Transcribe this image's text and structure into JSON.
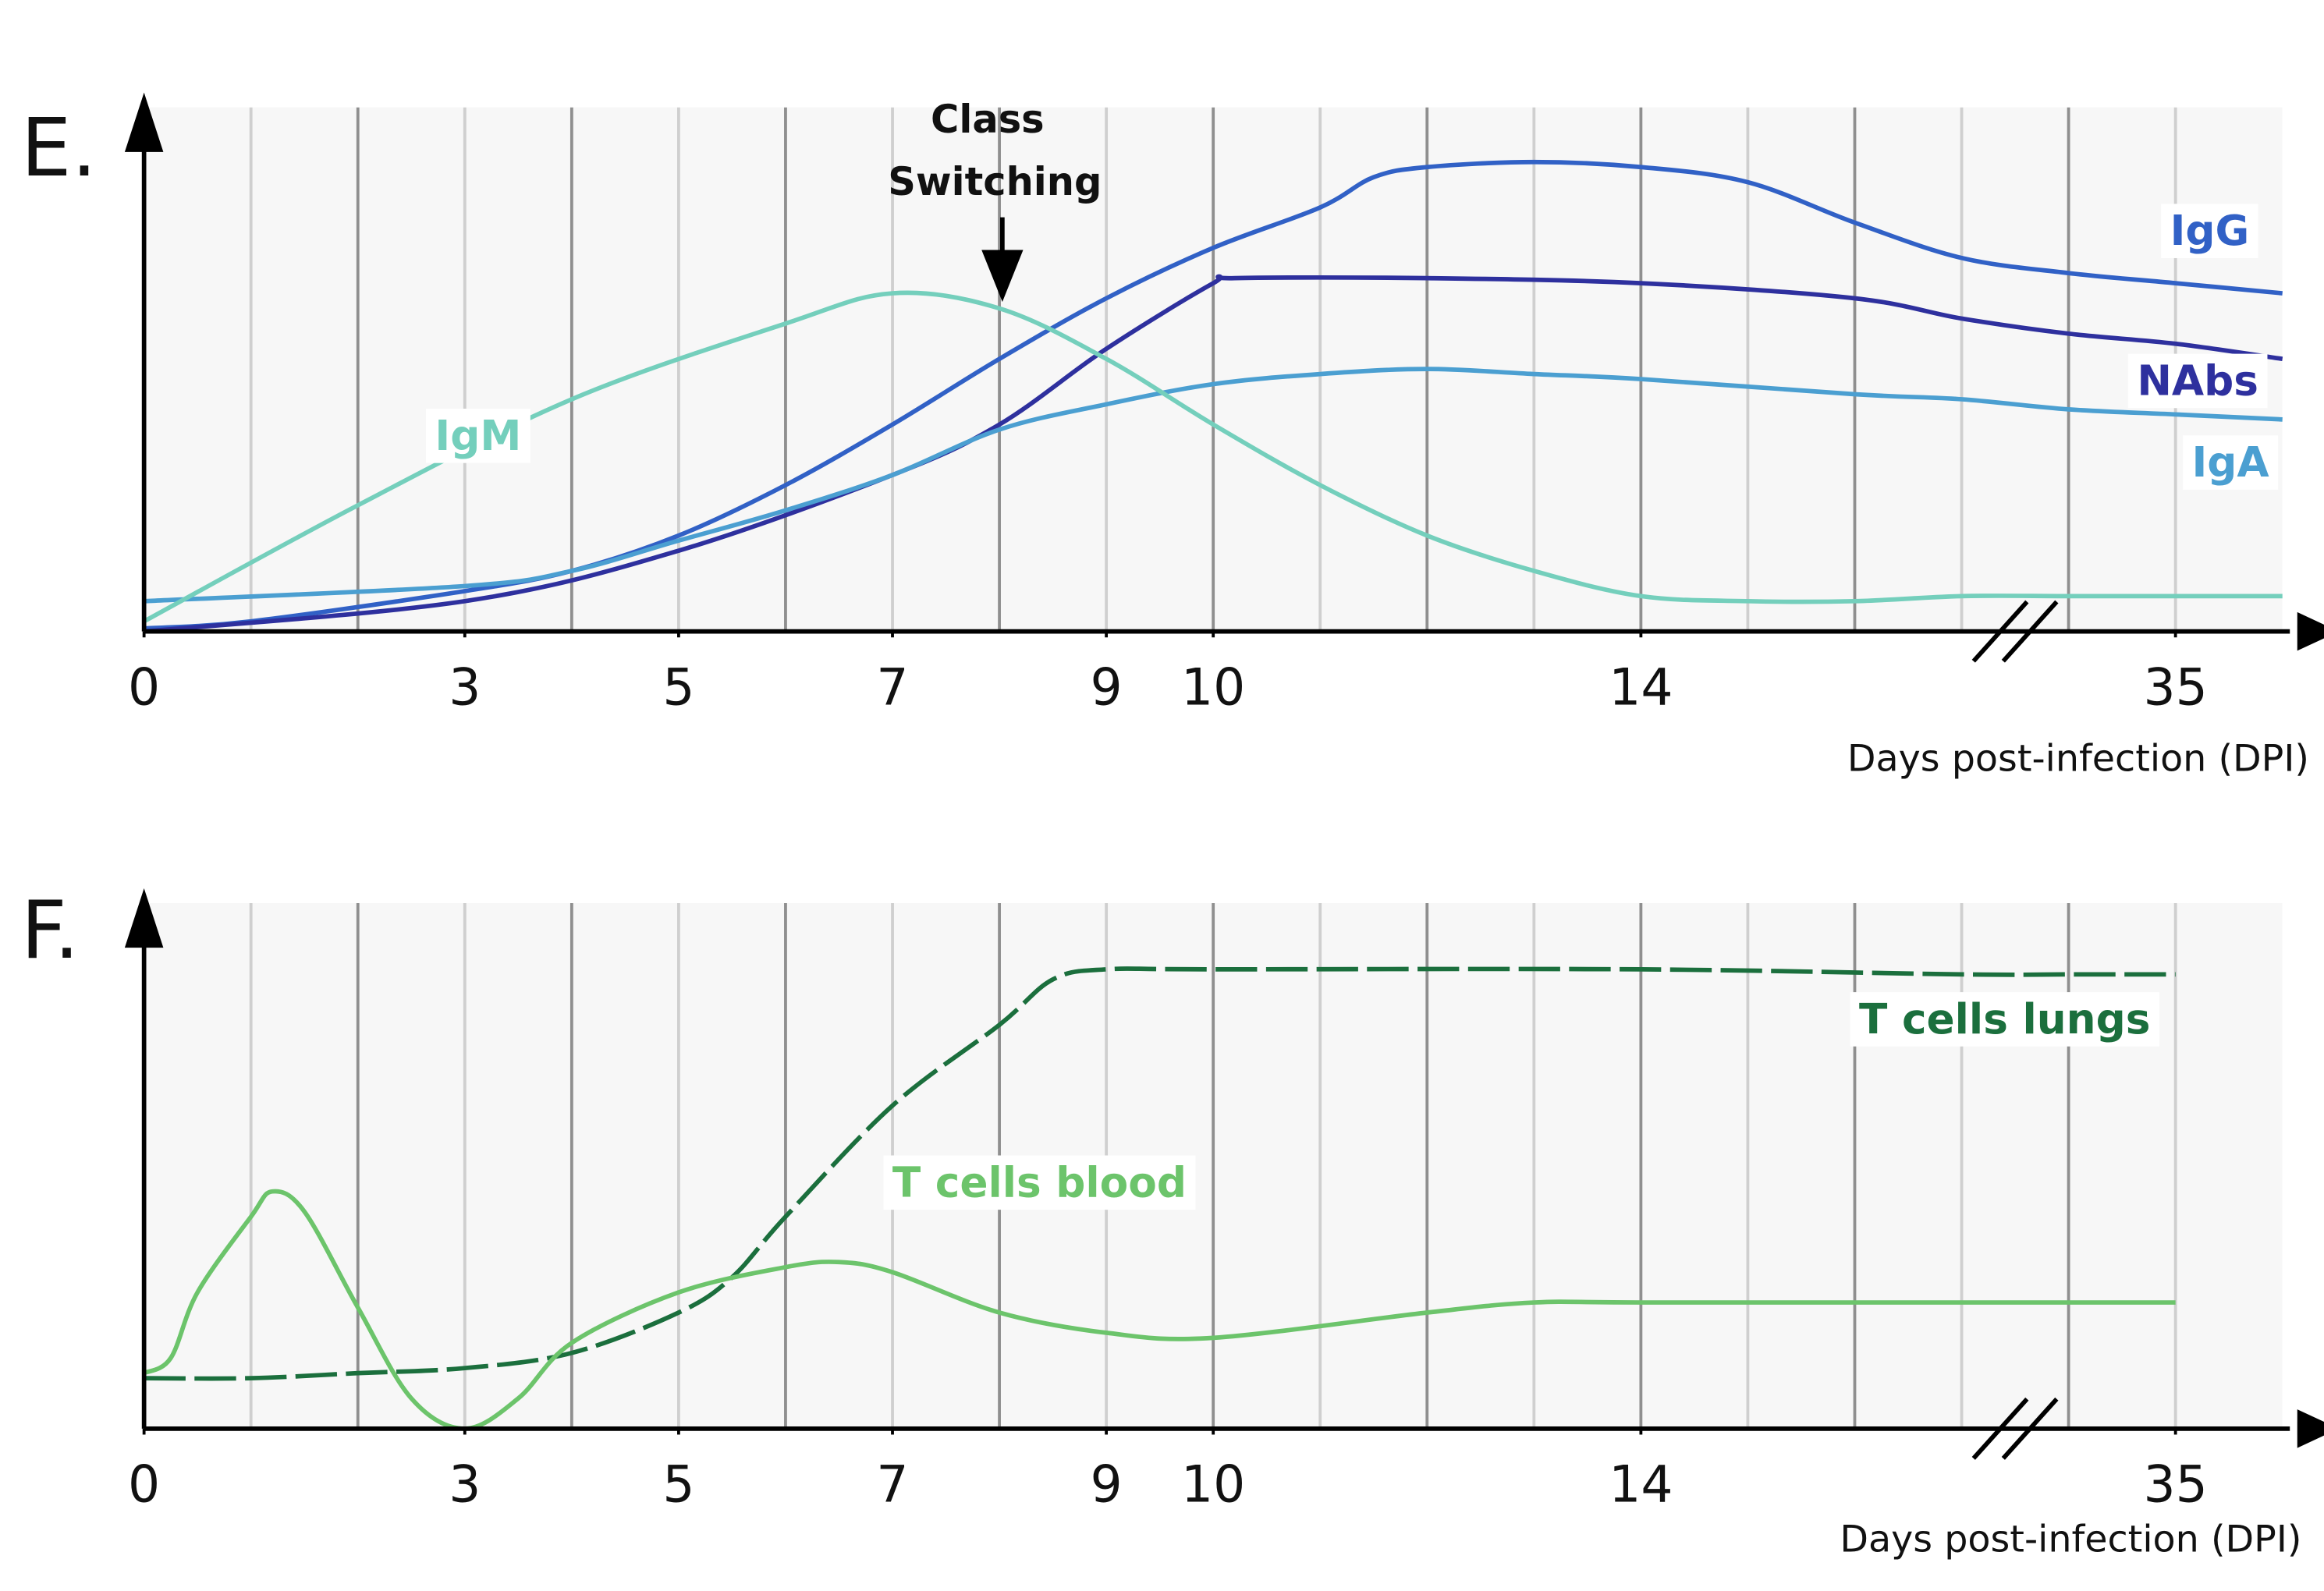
{
  "chart_data": [
    {
      "type": "line",
      "label": "E.",
      "xlabel": "Days post-infection (DPI)",
      "annotation": [
        "Class",
        "Switching"
      ],
      "xlim": [
        0,
        36
      ],
      "xbreak": [
        17,
        34
      ],
      "xticks": [
        0,
        3,
        5,
        7,
        9,
        10,
        14,
        35
      ],
      "xgrid": [
        1,
        2,
        3,
        4,
        5,
        6,
        7,
        8,
        9,
        10,
        11,
        12,
        13,
        14,
        15,
        16,
        17,
        34,
        35
      ],
      "ylim": [
        0,
        100
      ],
      "series": [
        {
          "name": "IgG",
          "color": "#3161c6",
          "dash": false,
          "x": [
            0,
            1,
            3,
            4,
            5,
            6,
            7,
            8,
            9,
            10,
            11,
            11.5,
            12,
            13,
            14,
            15,
            16,
            17,
            34,
            35,
            36
          ],
          "values": [
            0.6,
            2,
            8,
            12,
            19,
            29,
            41,
            54,
            66,
            76,
            84,
            90,
            92,
            93,
            92,
            89,
            81,
            74,
            71,
            69,
            67
          ]
        },
        {
          "name": "NAbs",
          "color": "#2e309e",
          "dash": false,
          "x": [
            0,
            3,
            5,
            7,
            8,
            9,
            10,
            10.2,
            12,
            14,
            16,
            17,
            34,
            35,
            36
          ],
          "values": [
            0,
            6,
            16,
            31,
            41,
            56,
            69,
            70,
            70,
            69,
            66,
            62,
            59,
            57,
            54
          ]
        },
        {
          "name": "IgA",
          "color": "#4b9fd1",
          "dash": false,
          "x": [
            0,
            3,
            4,
            5,
            6,
            7,
            8,
            9,
            10,
            11,
            12,
            13,
            14,
            16,
            17,
            34,
            35,
            36
          ],
          "values": [
            6,
            9,
            12,
            18,
            24,
            31,
            40,
            45,
            49,
            51,
            52,
            51,
            50,
            47,
            46,
            44,
            43,
            42
          ]
        },
        {
          "name": "IgM",
          "color": "#74cfbc",
          "dash": false,
          "x": [
            0,
            2,
            4,
            6,
            7,
            8,
            9,
            10,
            11,
            12,
            13,
            14,
            15,
            16,
            17,
            34,
            35,
            36
          ],
          "values": [
            2,
            25,
            46,
            61,
            67,
            64,
            54,
            41,
            29,
            19,
            12,
            7,
            6,
            6,
            7,
            7,
            7,
            7
          ]
        }
      ]
    },
    {
      "type": "line",
      "label": "F.",
      "xlabel": "Days post-infection (DPI)",
      "xlim": [
        0,
        36
      ],
      "xbreak": [
        17,
        34
      ],
      "xticks": [
        0,
        3,
        5,
        7,
        9,
        10,
        14,
        35
      ],
      "xgrid": [
        1,
        2,
        3,
        4,
        5,
        6,
        7,
        8,
        9,
        10,
        11,
        12,
        13,
        14,
        15,
        16,
        17,
        34,
        35
      ],
      "ylim": [
        0,
        100
      ],
      "series": [
        {
          "name": "T cells lungs",
          "color": "#1b6f3d",
          "dash": true,
          "x": [
            0,
            1,
            2,
            3,
            4,
            5,
            5.5,
            6,
            7,
            8,
            8.5,
            9,
            10,
            14,
            17,
            34,
            35
          ],
          "values": [
            10,
            10,
            11,
            12,
            15,
            23,
            30,
            42,
            64,
            80,
            89,
            91,
            91,
            91,
            90,
            90,
            90
          ]
        },
        {
          "name": "T cells blood",
          "color": "#6cc46b",
          "dash": false,
          "x": [
            0,
            0.25,
            0.5,
            1,
            1.2,
            1.5,
            2,
            2.5,
            3,
            3.5,
            4,
            5,
            6,
            6.5,
            7,
            8,
            9,
            10,
            12,
            13,
            14,
            17,
            34,
            35
          ],
          "values": [
            11,
            14,
            27,
            42,
            47,
            43,
            24,
            6,
            0,
            6,
            17,
            27,
            32,
            33,
            31,
            23,
            19,
            18,
            23,
            25,
            25,
            25,
            25,
            25
          ]
        }
      ]
    }
  ]
}
